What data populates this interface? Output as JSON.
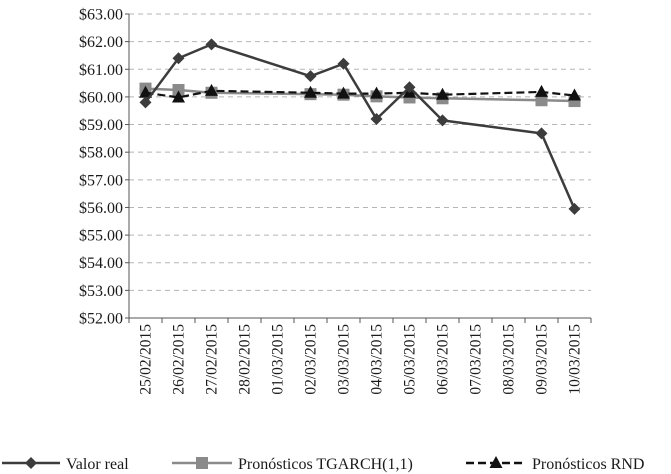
{
  "chart_data": {
    "type": "line",
    "title": "",
    "xlabel": "",
    "ylabel": "",
    "ylim": [
      52,
      63
    ],
    "y_tick_step": 1,
    "y_tick_labels": [
      "$52.00",
      "$53.00",
      "$54.00",
      "$55.00",
      "$56.00",
      "$57.00",
      "$58.00",
      "$59.00",
      "$60.00",
      "$61.00",
      "$62.00",
      "$63.00"
    ],
    "categories": [
      "25/02/2015",
      "26/02/2015",
      "27/02/2015",
      "28/02/2015",
      "01/03/2015",
      "02/03/2015",
      "03/03/2015",
      "04/03/2015",
      "05/03/2015",
      "06/03/2015",
      "07/03/2015",
      "08/03/2015",
      "09/03/2015",
      "10/03/2015"
    ],
    "grid": "horizontal-dashed",
    "legend_position": "bottom",
    "series": [
      {
        "name": "Valor real",
        "color": "#3c3c3c",
        "marker": "diamond",
        "line_style": "solid",
        "points": [
          {
            "x": "25/02/2015",
            "y": 59.8
          },
          {
            "x": "26/02/2015",
            "y": 61.4
          },
          {
            "x": "27/02/2015",
            "y": 61.9
          },
          {
            "x": "02/03/2015",
            "y": 60.75
          },
          {
            "x": "03/03/2015",
            "y": 61.2
          },
          {
            "x": "04/03/2015",
            "y": 59.2
          },
          {
            "x": "05/03/2015",
            "y": 60.35
          },
          {
            "x": "06/03/2015",
            "y": 59.15
          },
          {
            "x": "09/03/2015",
            "y": 58.68
          },
          {
            "x": "10/03/2015",
            "y": 55.95
          }
        ]
      },
      {
        "name": "Pronósticos TGARCH(1,1)",
        "color": "#8a8a8a",
        "marker": "square",
        "line_style": "solid",
        "points": [
          {
            "x": "25/02/2015",
            "y": 60.3
          },
          {
            "x": "26/02/2015",
            "y": 60.25
          },
          {
            "x": "27/02/2015",
            "y": 60.15
          },
          {
            "x": "02/03/2015",
            "y": 60.1
          },
          {
            "x": "03/03/2015",
            "y": 60.08
          },
          {
            "x": "04/03/2015",
            "y": 60.02
          },
          {
            "x": "05/03/2015",
            "y": 59.98
          },
          {
            "x": "06/03/2015",
            "y": 59.95
          },
          {
            "x": "09/03/2015",
            "y": 59.88
          },
          {
            "x": "10/03/2015",
            "y": 59.85
          }
        ]
      },
      {
        "name": "Pronósticos RND",
        "color": "#111111",
        "marker": "triangle",
        "line_style": "dashed",
        "points": [
          {
            "x": "25/02/2015",
            "y": 60.15
          },
          {
            "x": "26/02/2015",
            "y": 59.98
          },
          {
            "x": "27/02/2015",
            "y": 60.22
          },
          {
            "x": "02/03/2015",
            "y": 60.15
          },
          {
            "x": "03/03/2015",
            "y": 60.12
          },
          {
            "x": "04/03/2015",
            "y": 60.12
          },
          {
            "x": "05/03/2015",
            "y": 60.15
          },
          {
            "x": "06/03/2015",
            "y": 60.08
          },
          {
            "x": "09/03/2015",
            "y": 60.18
          },
          {
            "x": "10/03/2015",
            "y": 60.05
          }
        ]
      }
    ]
  }
}
